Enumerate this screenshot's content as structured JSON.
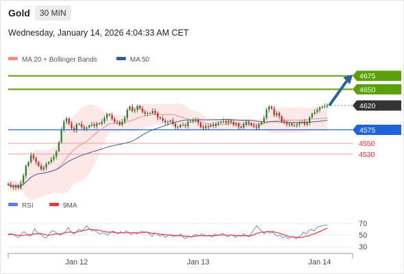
{
  "header": {
    "title": "Gold",
    "interval": "30 MIN",
    "datetime": "Wednesday, January 14, 2026 4:04:33 AM CET"
  },
  "colors": {
    "up": "#2e7d32",
    "down": "#c62828",
    "ma20": "#f28b82",
    "ma50": "#3c5a9a",
    "band_fill": "#fde4e4",
    "resistance": "#5aa00a",
    "support": "#1e63d8",
    "minor_level": "#ef9a9a",
    "current_tag": "#333333",
    "rsi": "#5b7fe0",
    "rsi_ma": "#e53935",
    "arrow": "#2f5fa0"
  },
  "chart_data": [
    {
      "type": "candlestick",
      "title": "Gold",
      "legend": [
        {
          "name": "MA 20 + Bollinger Bands",
          "color": "#f28b82"
        },
        {
          "name": "MA 50",
          "color": "#3c5a9a"
        }
      ],
      "legend_position": "top-left",
      "x_tick_labels": [
        "Jan 12",
        "Jan 13",
        "Jan 14"
      ],
      "x_tick_index": [
        27,
        75,
        123
      ],
      "ylim": [
        4460,
        4695
      ],
      "levels": [
        {
          "value": 4675,
          "label": "4675",
          "style": "resistance"
        },
        {
          "value": 4650,
          "label": "4650",
          "style": "resistance"
        },
        {
          "value": 4620,
          "label": "4620",
          "style": "current"
        },
        {
          "value": 4575,
          "label": "4575",
          "style": "support"
        },
        {
          "value": 4550,
          "label": "4550",
          "style": "minor"
        },
        {
          "value": 4530,
          "label": "4530",
          "style": "minor"
        }
      ],
      "forecast_arrow": {
        "from_value": 4622,
        "to_value": 4676
      },
      "close": [
        4473,
        4470,
        4468,
        4472,
        4467,
        4476,
        4490,
        4508,
        4515,
        4528,
        4522,
        4515,
        4508,
        4502,
        4505,
        4512,
        4515,
        4520,
        4525,
        4535,
        4552,
        4575,
        4590,
        4596,
        4586,
        4578,
        4574,
        4585,
        4586,
        4580,
        4577,
        4579,
        4583,
        4585,
        4582,
        4587,
        4586,
        4590,
        4597,
        4604,
        4602,
        4595,
        4590,
        4590,
        4584,
        4590,
        4597,
        4612,
        4618,
        4610,
        4612,
        4619,
        4614,
        4608,
        4605,
        4606,
        4606,
        4610,
        4606,
        4598,
        4596,
        4592,
        4589,
        4590,
        4592,
        4586,
        4580,
        4580,
        4584,
        4584,
        4582,
        4590,
        4590,
        4592,
        4594,
        4588,
        4580,
        4578,
        4582,
        4581,
        4584,
        4582,
        4586,
        4588,
        4590,
        4591,
        4588,
        4592,
        4589,
        4584,
        4586,
        4581,
        4579,
        4585,
        4590,
        4587,
        4583,
        4581,
        4579,
        4585,
        4589,
        4597,
        4612,
        4618,
        4614,
        4602,
        4606,
        4600,
        4590,
        4588,
        4585,
        4587,
        4583,
        4583,
        4585,
        4588,
        4590,
        4585,
        4588,
        4598,
        4605,
        4608,
        4612,
        4616,
        4618,
        4619,
        4620
      ]
    },
    {
      "type": "line",
      "title": "RSI",
      "legend": [
        {
          "name": "RSI",
          "color": "#5b7fe0"
        },
        {
          "name": "9MA",
          "color": "#e53935"
        }
      ],
      "ylim": [
        22,
        82
      ],
      "y_ticks": [
        70,
        50,
        30
      ],
      "series": [
        {
          "name": "RSI",
          "values": [
            49,
            53,
            51,
            48,
            46,
            52,
            56,
            53,
            48,
            50,
            61,
            55,
            52,
            49,
            45,
            47,
            54,
            58,
            55,
            52,
            50,
            53,
            57,
            63,
            56,
            52,
            55,
            60,
            57,
            61,
            66,
            61,
            57,
            59,
            55,
            52,
            54,
            53,
            50,
            54,
            57,
            55,
            52,
            56,
            53,
            57,
            55,
            51,
            55,
            52,
            54,
            57,
            54,
            55,
            52,
            48,
            54,
            52,
            48,
            51,
            46,
            49,
            51,
            47,
            50,
            49,
            52,
            46,
            44,
            48,
            46,
            50,
            51,
            49,
            52,
            50,
            48,
            50,
            47,
            52,
            49,
            51,
            53,
            50,
            47,
            51,
            49,
            46,
            50,
            48,
            52,
            49,
            47,
            53,
            60,
            66,
            61,
            56,
            52,
            57,
            53,
            55,
            51,
            48,
            50,
            45,
            48,
            44,
            46,
            48,
            44,
            47,
            50,
            55,
            52,
            58,
            60,
            57,
            63,
            65,
            66,
            67,
            67
          ]
        },
        {
          "name": "9MA",
          "values": [
            52,
            51,
            51,
            50,
            50,
            49,
            50,
            50,
            51,
            51,
            52,
            52,
            53,
            52,
            51,
            50,
            50,
            51,
            52,
            52,
            52,
            53,
            54,
            55,
            55,
            54,
            55,
            56,
            57,
            58,
            59,
            60,
            60,
            59,
            59,
            58,
            57,
            56,
            55,
            55,
            55,
            54,
            54,
            54,
            54,
            54,
            54,
            54,
            54,
            54,
            54,
            54,
            55,
            55,
            54,
            53,
            53,
            52,
            52,
            51,
            51,
            50,
            50,
            50,
            49,
            49,
            49,
            48,
            48,
            48,
            47,
            48,
            48,
            49,
            49,
            49,
            49,
            49,
            49,
            49,
            50,
            50,
            50,
            50,
            50,
            50,
            50,
            49,
            49,
            49,
            49,
            49,
            49,
            49,
            51,
            53,
            54,
            55,
            55,
            56,
            56,
            56,
            55,
            54,
            53,
            51,
            50,
            48,
            47,
            47,
            46,
            46,
            46,
            47,
            48,
            49,
            51,
            52,
            54,
            56,
            58,
            60,
            62
          ]
        }
      ]
    }
  ]
}
